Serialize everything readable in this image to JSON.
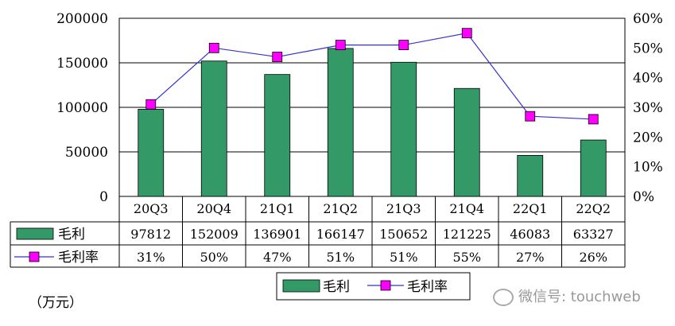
{
  "chart_data": {
    "type": "bar",
    "categories": [
      "20Q3",
      "20Q4",
      "21Q1",
      "21Q2",
      "21Q3",
      "21Q4",
      "22Q1",
      "22Q2"
    ],
    "series": [
      {
        "name": "毛利",
        "kind": "bar",
        "axis": "left",
        "color": "#339966",
        "values": [
          97812,
          152009,
          136901,
          166147,
          150652,
          121225,
          46083,
          63327
        ]
      },
      {
        "name": "毛利率",
        "kind": "line",
        "axis": "right",
        "color": "#3333cc",
        "marker_color": "#ff00ff",
        "values": [
          31,
          50,
          47,
          51,
          51,
          55,
          27,
          26
        ],
        "labels": [
          "31%",
          "50%",
          "47%",
          "51%",
          "51%",
          "55%",
          "27%",
          "26%"
        ]
      }
    ],
    "left_axis": {
      "min": 0,
      "max": 200000,
      "ticks": [
        "0",
        "50000",
        "100000",
        "150000",
        "200000"
      ]
    },
    "right_axis": {
      "min": 0,
      "max": 60,
      "ticks": [
        "0%",
        "10%",
        "20%",
        "30%",
        "40%",
        "50%",
        "60%"
      ]
    },
    "grid": true,
    "data_table": true,
    "legend_position": "bottom",
    "unit_label": "（万元）"
  },
  "watermark": "微信号: touchweb"
}
